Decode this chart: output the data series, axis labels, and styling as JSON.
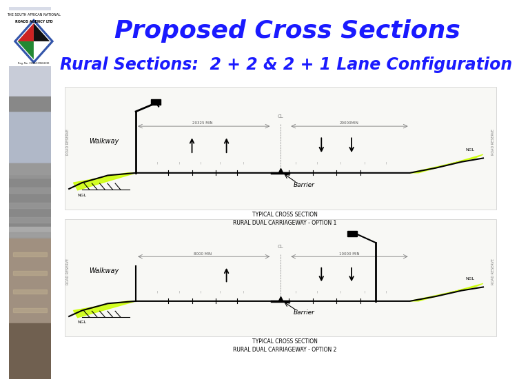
{
  "title": "Proposed Cross Sections",
  "subtitle": "Rural Sections:  2 + 2 & 2 + 1 Lane Configuration",
  "title_color": "#1a1aff",
  "subtitle_color": "#1a1aff",
  "title_fontsize": 26,
  "subtitle_fontsize": 17,
  "bg_color": "#ffffff",
  "caption1": "TYPICAL CROSS SECTION\nRURAL DUAL CARRIAGEWAY - OPTION 1",
  "caption2": "TYPICAL CROSS SECTION\nRURAL DUAL CARRIAGEWAY - OPTION 2",
  "yellow_green": "#ccff00",
  "diagram_bg": "#f8f8f5",
  "strip_colors": [
    "#7a6a5a",
    "#8a7a6a",
    "#9a8a7a",
    "#6a5a4a",
    "#7a6050",
    "#8a7060",
    "#999080",
    "#aaa090",
    "#6a6050",
    "#504030"
  ],
  "logo_border_color": "#3355aa",
  "logo_red": "#cc2222",
  "logo_green": "#228833",
  "logo_black": "#111111"
}
